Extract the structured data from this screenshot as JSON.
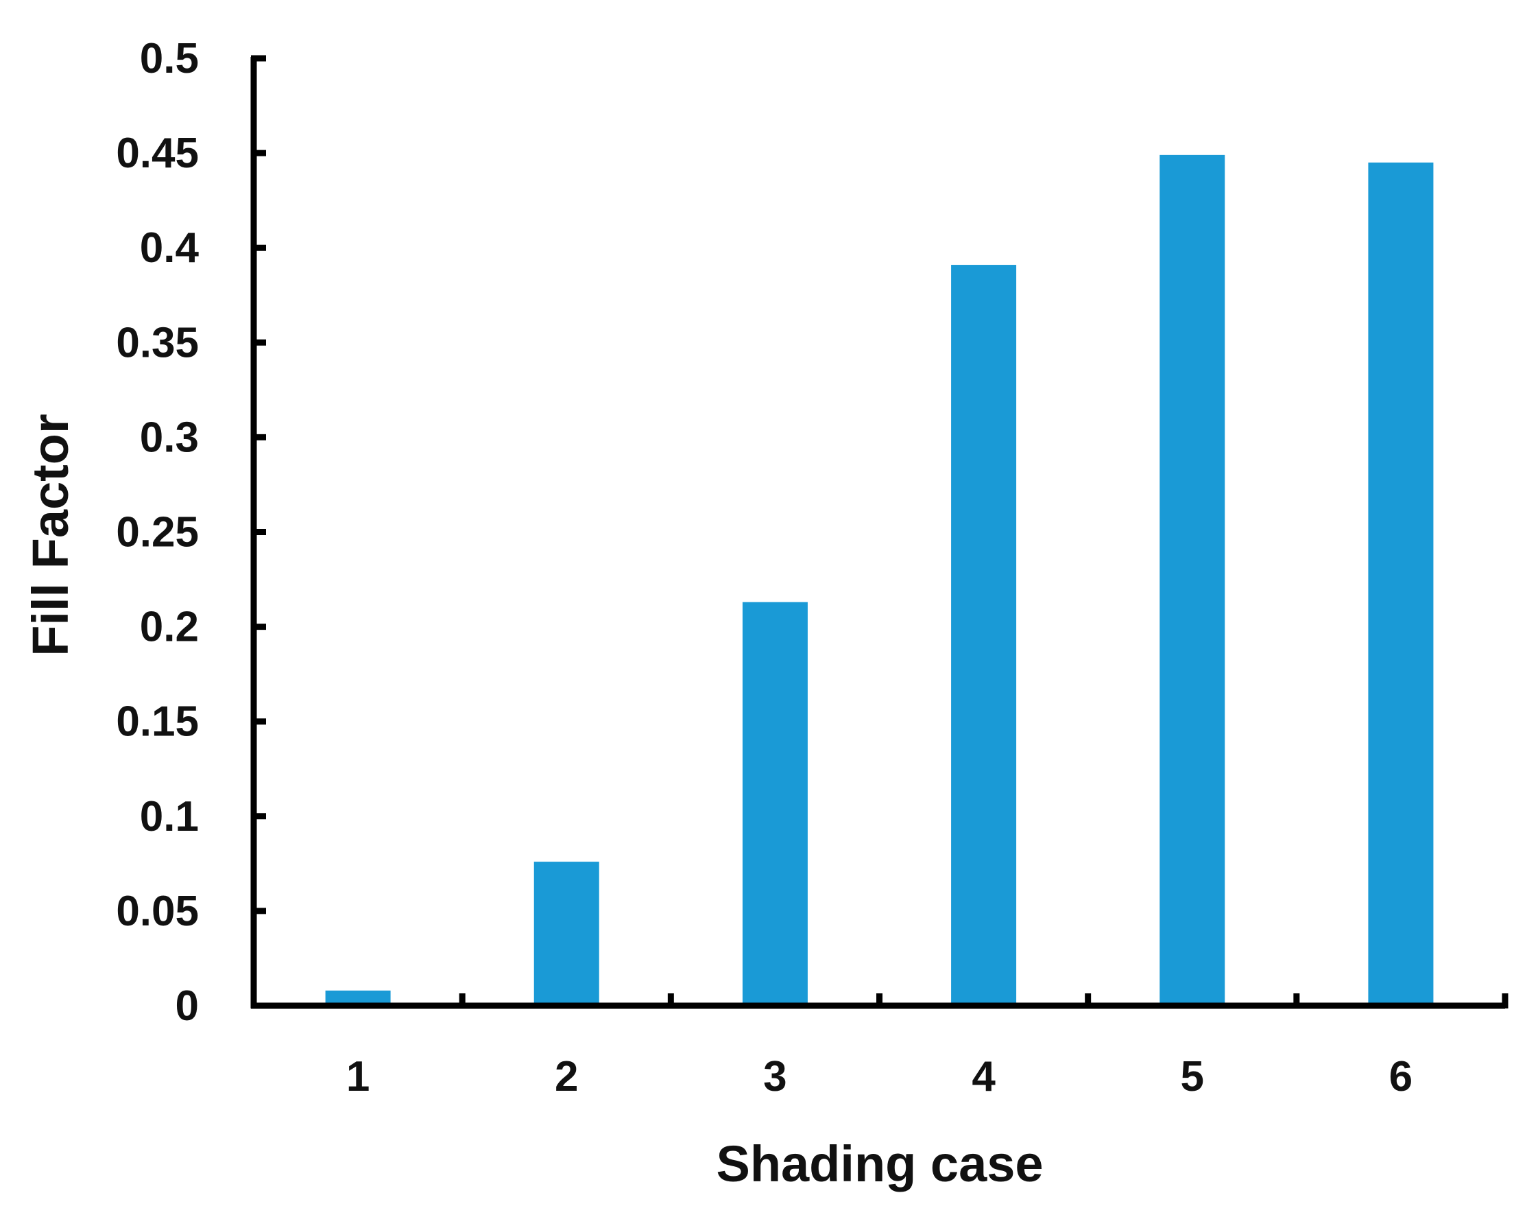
{
  "chart_data": {
    "type": "bar",
    "categories": [
      "1",
      "2",
      "3",
      "4",
      "5",
      "6"
    ],
    "values": [
      0.008,
      0.076,
      0.213,
      0.391,
      0.449,
      0.445
    ],
    "xlabel": "Shading case",
    "ylabel": "Fill Factor",
    "ylim": [
      0,
      0.5
    ],
    "yticks": [
      "0",
      "0.05",
      "0.1",
      "0.15",
      "0.2",
      "0.25",
      "0.3",
      "0.35",
      "0.4",
      "0.45",
      "0.5"
    ],
    "grid": false,
    "legend": "none",
    "bar_color": "#1a9ad6",
    "axis_color": "#000000"
  }
}
